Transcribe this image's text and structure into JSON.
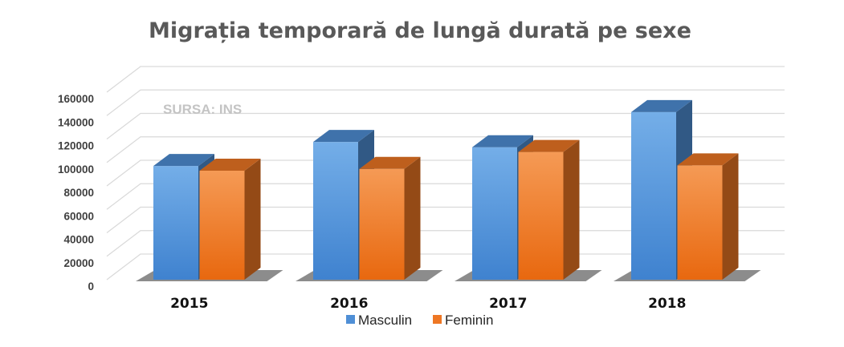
{
  "chart_data": {
    "type": "bar",
    "title": "Migrația temporară de lungă durată pe sexe",
    "annotation": "SURSA: INS",
    "categories": [
      "2015",
      "2016",
      "2017",
      "2018"
    ],
    "series": [
      {
        "name": "Masculin",
        "values": [
          97000,
          117500,
          113000,
          143000
        ],
        "color": "#4f8fd6"
      },
      {
        "name": "Feminin",
        "values": [
          93000,
          94500,
          109000,
          97500
        ],
        "color": "#ee7724"
      }
    ],
    "yticks": [
      "0",
      "20000",
      "40000",
      "60000",
      "80000",
      "100000",
      "120000",
      "140000",
      "160000"
    ],
    "ylim": [
      0,
      160000
    ],
    "xlabel": "",
    "ylabel": "",
    "grid": true,
    "legend_position": "bottom",
    "style": "3d-clustered-column"
  }
}
